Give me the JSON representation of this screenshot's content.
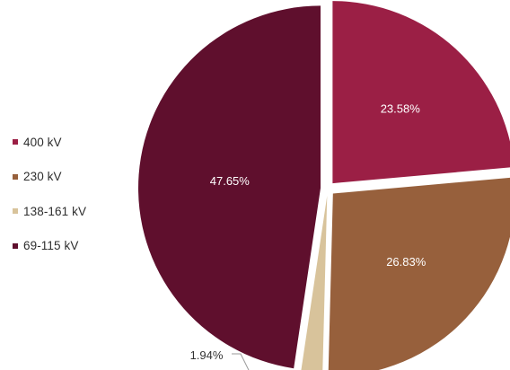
{
  "chart_data": {
    "type": "pie",
    "exploded": true,
    "legend_position": "left",
    "slices": [
      {
        "label": "400 kV",
        "value": 23.58,
        "display": "23.58%",
        "color": "#9b1f45"
      },
      {
        "label": "230 kV",
        "value": 26.83,
        "display": "26.83%",
        "color": "#97603c"
      },
      {
        "label": "138-161 kV",
        "value": 1.94,
        "display": "1.94%",
        "color": "#d8c39b"
      },
      {
        "label": "69-115 kV",
        "value": 47.65,
        "display": "47.65%",
        "color": "#5f0f2d"
      }
    ]
  }
}
